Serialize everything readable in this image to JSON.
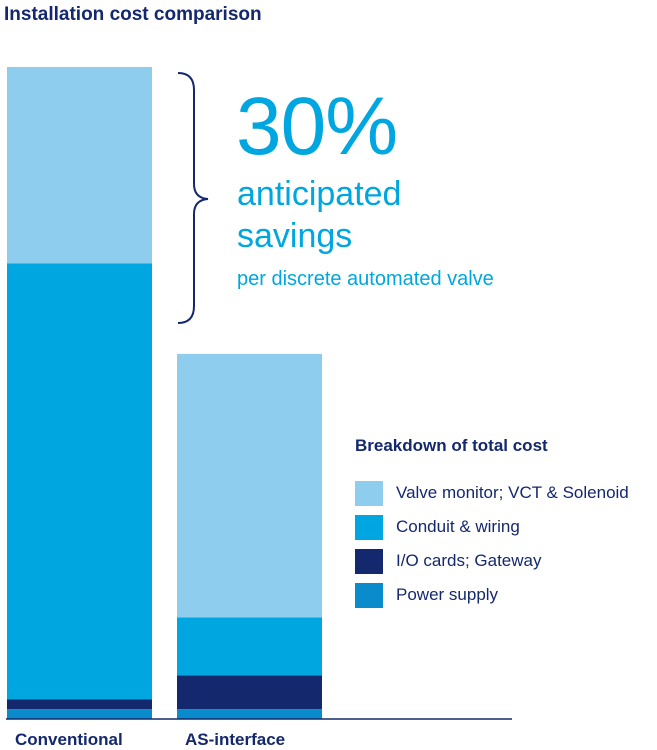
{
  "title": "Installation cost comparison",
  "callout": {
    "percent": "30%",
    "line1": "anticipated",
    "line2": "savings",
    "line3": "per discrete automated valve"
  },
  "legend_title": "Breakdown of total cost",
  "colors": {
    "valve_monitor": "#8fcdef",
    "conduit": "#00a6e0",
    "io_cards": "#14286e",
    "power": "#0a8ccc",
    "text_dark": "#14286e"
  },
  "chart_data": {
    "type": "bar",
    "stacked": true,
    "categories": [
      "Conventional",
      "AS-interface"
    ],
    "series": [
      {
        "name": "Power supply",
        "color": "#0a8ccc",
        "values": [
          1.5,
          1.5
        ]
      },
      {
        "name": "I/O cards; Gateway",
        "color": "#14286e",
        "values": [
          1.5,
          5.2
        ]
      },
      {
        "name": "Conduit & wiring",
        "color": "#00a6e0",
        "values": [
          66.9,
          8.9
        ]
      },
      {
        "name": "Valve monitor; VCT & Solenoid",
        "color": "#8fcdef",
        "values": [
          30.1,
          40.4
        ]
      }
    ],
    "legend_order": [
      "Valve monitor; VCT & Solenoid",
      "Conduit & wiring",
      "I/O cards; Gateway",
      "Power supply"
    ],
    "ylim": [
      0,
      100
    ],
    "unit": "percent of conventional total cost",
    "legend_position": "right",
    "grid": false
  }
}
